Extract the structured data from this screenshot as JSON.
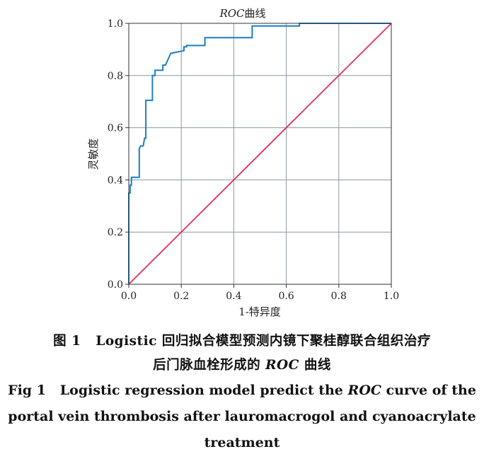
{
  "chart_data": {
    "type": "line",
    "title_italic": "ROC",
    "title_rest": "曲线",
    "xlabel": "1-特异度",
    "ylabel": "灵敏度",
    "xlim": [
      0,
      1
    ],
    "ylim": [
      0,
      1
    ],
    "xticks": [
      "0.0",
      "0.2",
      "0.4",
      "0.6",
      "0.8",
      "1.0"
    ],
    "yticks": [
      "0.0",
      "0.2",
      "0.4",
      "0.6",
      "0.8",
      "1.0"
    ],
    "grid": true,
    "series": [
      {
        "color": "#1a7fc4",
        "x": [
          0,
          0,
          0.005,
          0.005,
          0.01,
          0.01,
          0.04,
          0.04,
          0.045,
          0.055,
          0.06,
          0.065,
          0.065,
          0.09,
          0.09,
          0.1,
          0.1,
          0.13,
          0.13,
          0.14,
          0.16,
          0.16,
          0.21,
          0.21,
          0.22,
          0.22,
          0.29,
          0.29,
          0.47,
          0.47,
          0.65,
          0.65,
          1.0
        ],
        "y": [
          0,
          0.35,
          0.35,
          0.38,
          0.38,
          0.41,
          0.41,
          0.52,
          0.53,
          0.53,
          0.56,
          0.56,
          0.705,
          0.705,
          0.8,
          0.8,
          0.82,
          0.82,
          0.84,
          0.84,
          0.885,
          0.885,
          0.895,
          0.91,
          0.91,
          0.915,
          0.915,
          0.945,
          0.945,
          0.99,
          0.99,
          1.0,
          1.0
        ]
      },
      {
        "color": "#e0305a",
        "x": [
          0,
          1
        ],
        "y": [
          0,
          1
        ]
      }
    ]
  },
  "caption": {
    "cn_prefix": "图 1",
    "cn_line1": "Logistic 回归拟合模型预测内镜下聚桂醇联合组织治疗",
    "cn_line2_pre": "后门脉血栓形成的",
    "cn_line2_italic": "ROC",
    "cn_line2_post": "曲线",
    "en_prefix": "Fig 1",
    "en_line1_pre": "Logistic regression model predict the",
    "en_line1_italic": "ROC",
    "en_line1_post": "curve of the",
    "en_line2": "portal vein thrombosis after lauromacrogol and cyanoacrylate",
    "en_line3": "treatment"
  }
}
